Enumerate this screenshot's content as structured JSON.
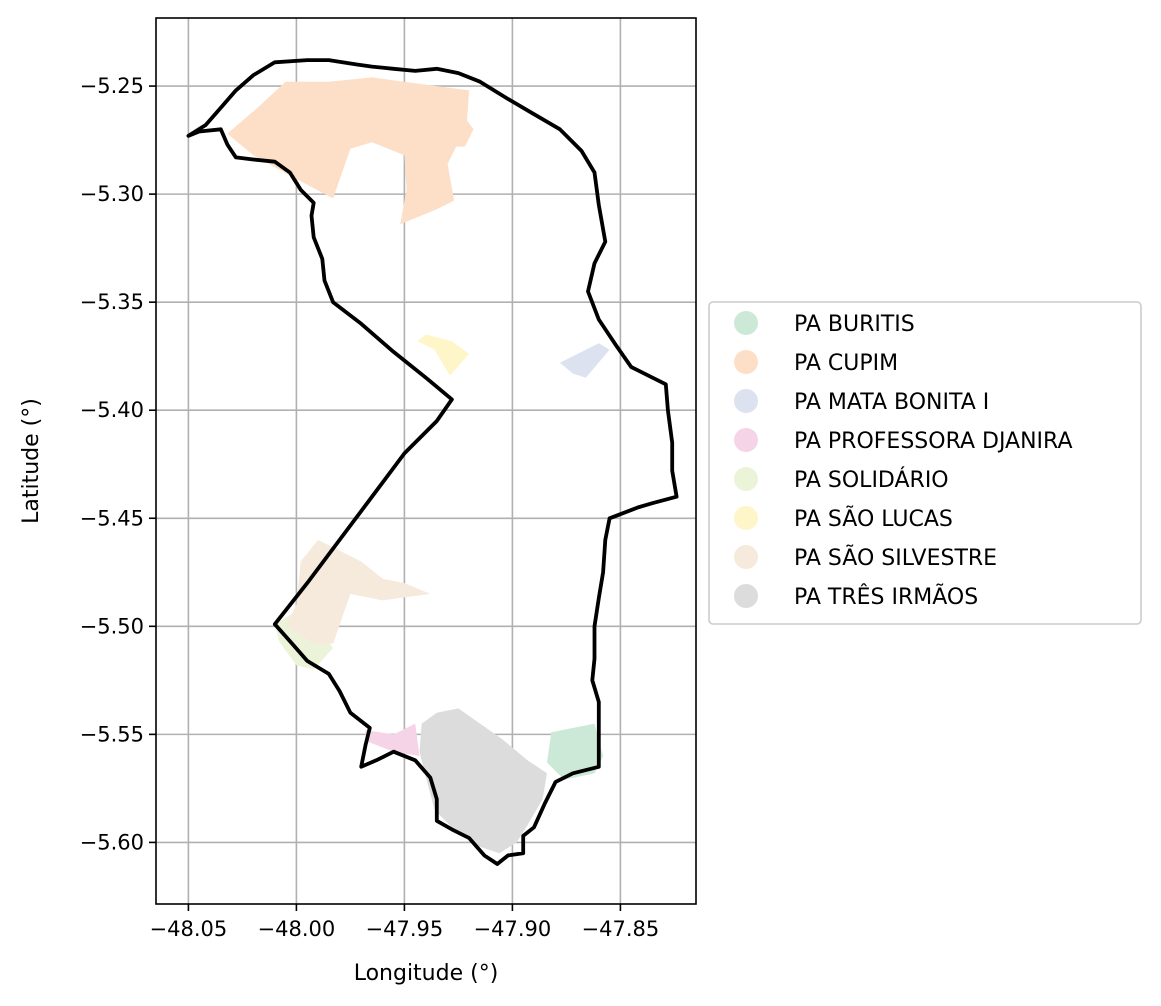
{
  "chart_data": {
    "type": "map",
    "xlabel": "Longitude (°)",
    "ylabel": "Latitude (°)",
    "xlim": [
      -48.065,
      -47.815
    ],
    "ylim": [
      -5.6285,
      -5.2185
    ],
    "grid": true,
    "legend_position": "right",
    "x_ticks": [
      {
        "value": -48.05,
        "label": "−48.05"
      },
      {
        "value": -48.0,
        "label": "−48.00"
      },
      {
        "value": -47.95,
        "label": "−47.95"
      },
      {
        "value": -47.9,
        "label": "−47.90"
      },
      {
        "value": -47.85,
        "label": "−47.85"
      }
    ],
    "y_ticks": [
      {
        "value": -5.25,
        "label": "−5.25"
      },
      {
        "value": -5.3,
        "label": "−5.30"
      },
      {
        "value": -5.35,
        "label": "−5.35"
      },
      {
        "value": -5.4,
        "label": "−5.40"
      },
      {
        "value": -5.45,
        "label": "−5.45"
      },
      {
        "value": -5.5,
        "label": "−5.50"
      },
      {
        "value": -5.55,
        "label": "−5.55"
      },
      {
        "value": -5.6,
        "label": "−5.60"
      }
    ],
    "boundary": {
      "color": "#000000",
      "coords": [
        [
          -48.05,
          -5.273
        ],
        [
          -48.042,
          -5.268
        ],
        [
          -48.035,
          -5.26
        ],
        [
          -48.028,
          -5.252
        ],
        [
          -48.02,
          -5.245
        ],
        [
          -48.01,
          -5.239
        ],
        [
          -47.995,
          -5.238
        ],
        [
          -47.985,
          -5.238
        ],
        [
          -47.972,
          -5.24
        ],
        [
          -47.965,
          -5.241
        ],
        [
          -47.955,
          -5.242
        ],
        [
          -47.945,
          -5.243
        ],
        [
          -47.935,
          -5.242
        ],
        [
          -47.925,
          -5.244
        ],
        [
          -47.915,
          -5.248
        ],
        [
          -47.902,
          -5.256
        ],
        [
          -47.89,
          -5.263
        ],
        [
          -47.878,
          -5.27
        ],
        [
          -47.868,
          -5.28
        ],
        [
          -47.862,
          -5.29
        ],
        [
          -47.86,
          -5.305
        ],
        [
          -47.857,
          -5.322
        ],
        [
          -47.862,
          -5.332
        ],
        [
          -47.865,
          -5.345
        ],
        [
          -47.86,
          -5.358
        ],
        [
          -47.852,
          -5.37
        ],
        [
          -47.845,
          -5.38
        ],
        [
          -47.835,
          -5.385
        ],
        [
          -47.829,
          -5.388
        ],
        [
          -47.828,
          -5.4
        ],
        [
          -47.826,
          -5.415
        ],
        [
          -47.826,
          -5.428
        ],
        [
          -47.824,
          -5.44
        ],
        [
          -47.835,
          -5.443
        ],
        [
          -47.842,
          -5.445
        ],
        [
          -47.855,
          -5.45
        ],
        [
          -47.857,
          -5.46
        ],
        [
          -47.858,
          -5.475
        ],
        [
          -47.86,
          -5.487
        ],
        [
          -47.862,
          -5.5
        ],
        [
          -47.862,
          -5.515
        ],
        [
          -47.863,
          -5.525
        ],
        [
          -47.86,
          -5.535
        ],
        [
          -47.86,
          -5.548
        ],
        [
          -47.86,
          -5.565
        ],
        [
          -47.872,
          -5.568
        ],
        [
          -47.88,
          -5.572
        ],
        [
          -47.885,
          -5.582
        ],
        [
          -47.89,
          -5.593
        ],
        [
          -47.895,
          -5.597
        ],
        [
          -47.895,
          -5.605
        ],
        [
          -47.902,
          -5.606
        ],
        [
          -47.907,
          -5.61
        ],
        [
          -47.913,
          -5.606
        ],
        [
          -47.92,
          -5.598
        ],
        [
          -47.928,
          -5.594
        ],
        [
          -47.935,
          -5.59
        ],
        [
          -47.935,
          -5.58
        ],
        [
          -47.938,
          -5.57
        ],
        [
          -47.945,
          -5.562
        ],
        [
          -47.955,
          -5.558
        ],
        [
          -47.963,
          -5.562
        ],
        [
          -47.97,
          -5.565
        ],
        [
          -47.968,
          -5.555
        ],
        [
          -47.966,
          -5.547
        ],
        [
          -47.975,
          -5.54
        ],
        [
          -47.98,
          -5.53
        ],
        [
          -47.985,
          -5.522
        ],
        [
          -47.995,
          -5.516
        ],
        [
          -48.002,
          -5.508
        ],
        [
          -48.01,
          -5.499
        ],
        [
          -47.995,
          -5.48
        ],
        [
          -47.98,
          -5.46
        ],
        [
          -47.965,
          -5.44
        ],
        [
          -47.95,
          -5.42
        ],
        [
          -47.935,
          -5.405
        ],
        [
          -47.928,
          -5.395
        ],
        [
          -47.94,
          -5.385
        ],
        [
          -47.955,
          -5.373
        ],
        [
          -47.97,
          -5.36
        ],
        [
          -47.983,
          -5.35
        ],
        [
          -47.987,
          -5.34
        ],
        [
          -47.988,
          -5.33
        ],
        [
          -47.992,
          -5.32
        ],
        [
          -47.993,
          -5.31
        ],
        [
          -47.992,
          -5.304
        ],
        [
          -47.998,
          -5.298
        ],
        [
          -48.003,
          -5.29
        ],
        [
          -48.01,
          -5.285
        ],
        [
          -48.02,
          -5.284
        ],
        [
          -48.028,
          -5.283
        ],
        [
          -48.032,
          -5.277
        ],
        [
          -48.035,
          -5.27
        ],
        [
          -48.045,
          -5.271
        ],
        [
          -48.05,
          -5.273
        ]
      ]
    },
    "series": [
      {
        "name": "PA BURITIS",
        "color": "#cce9d8",
        "coords": [
          [
            -47.882,
            -5.549
          ],
          [
            -47.862,
            -5.545
          ],
          [
            -47.858,
            -5.56
          ],
          [
            -47.862,
            -5.568
          ],
          [
            -47.876,
            -5.571
          ],
          [
            -47.884,
            -5.563
          ]
        ]
      },
      {
        "name": "PA CUPIM",
        "color": "#fddfc8",
        "coords": [
          [
            -48.032,
            -5.272
          ],
          [
            -48.018,
            -5.26
          ],
          [
            -48.005,
            -5.248
          ],
          [
            -47.985,
            -5.248
          ],
          [
            -47.965,
            -5.246
          ],
          [
            -47.935,
            -5.25
          ],
          [
            -47.92,
            -5.252
          ],
          [
            -47.921,
            -5.266
          ],
          [
            -47.918,
            -5.27
          ],
          [
            -47.922,
            -5.278
          ],
          [
            -47.926,
            -5.278
          ],
          [
            -47.93,
            -5.286
          ],
          [
            -47.927,
            -5.303
          ],
          [
            -47.935,
            -5.307
          ],
          [
            -47.952,
            -5.314
          ],
          [
            -47.949,
            -5.298
          ],
          [
            -47.95,
            -5.282
          ],
          [
            -47.965,
            -5.276
          ],
          [
            -47.975,
            -5.279
          ],
          [
            -47.983,
            -5.302
          ],
          [
            -48.002,
            -5.292
          ],
          [
            -48.02,
            -5.282
          ]
        ]
      },
      {
        "name": "PA MATA BONITA I",
        "color": "#dde2f0",
        "coords": [
          [
            -47.878,
            -5.378
          ],
          [
            -47.86,
            -5.369
          ],
          [
            -47.855,
            -5.372
          ],
          [
            -47.866,
            -5.385
          ],
          [
            -47.872,
            -5.383
          ]
        ]
      },
      {
        "name": "PA PROFESSORA DJANIRA",
        "color": "#f6d4e8",
        "coords": [
          [
            -47.968,
            -5.548
          ],
          [
            -47.955,
            -5.55
          ],
          [
            -47.945,
            -5.545
          ],
          [
            -47.943,
            -5.56
          ],
          [
            -47.955,
            -5.558
          ],
          [
            -47.968,
            -5.553
          ]
        ]
      },
      {
        "name": "PA SOLIDÁRIO",
        "color": "#ebf4d9",
        "coords": [
          [
            -48.0,
            -5.493
          ],
          [
            -47.99,
            -5.502
          ],
          [
            -47.983,
            -5.51
          ],
          [
            -47.992,
            -5.52
          ],
          [
            -48.0,
            -5.518
          ],
          [
            -48.008,
            -5.507
          ],
          [
            -48.01,
            -5.499
          ]
        ]
      },
      {
        "name": "PA SÃO LUCAS",
        "color": "#fef6c9",
        "coords": [
          [
            -47.944,
            -5.368
          ],
          [
            -47.936,
            -5.372
          ],
          [
            -47.929,
            -5.384
          ],
          [
            -47.92,
            -5.374
          ],
          [
            -47.928,
            -5.368
          ],
          [
            -47.94,
            -5.365
          ]
        ]
      },
      {
        "name": "PA SÃO SILVESTRE",
        "color": "#f5eadb",
        "coords": [
          [
            -47.99,
            -5.46
          ],
          [
            -47.97,
            -5.47
          ],
          [
            -47.96,
            -5.478
          ],
          [
            -47.95,
            -5.48
          ],
          [
            -47.938,
            -5.485
          ],
          [
            -47.96,
            -5.488
          ],
          [
            -47.975,
            -5.485
          ],
          [
            -47.983,
            -5.508
          ],
          [
            -47.992,
            -5.508
          ],
          [
            -48.005,
            -5.5
          ],
          [
            -48.0,
            -5.49
          ],
          [
            -47.998,
            -5.47
          ]
        ]
      },
      {
        "name": "PA TRÊS IRMÃOS",
        "color": "#dcdcdc",
        "coords": [
          [
            -47.942,
            -5.545
          ],
          [
            -47.935,
            -5.54
          ],
          [
            -47.925,
            -5.538
          ],
          [
            -47.915,
            -5.545
          ],
          [
            -47.905,
            -5.552
          ],
          [
            -47.893,
            -5.562
          ],
          [
            -47.884,
            -5.568
          ],
          [
            -47.886,
            -5.58
          ],
          [
            -47.893,
            -5.592
          ],
          [
            -47.898,
            -5.6
          ],
          [
            -47.906,
            -5.605
          ],
          [
            -47.915,
            -5.602
          ],
          [
            -47.926,
            -5.595
          ],
          [
            -47.936,
            -5.585
          ],
          [
            -47.94,
            -5.57
          ],
          [
            -47.943,
            -5.558
          ]
        ]
      }
    ]
  }
}
